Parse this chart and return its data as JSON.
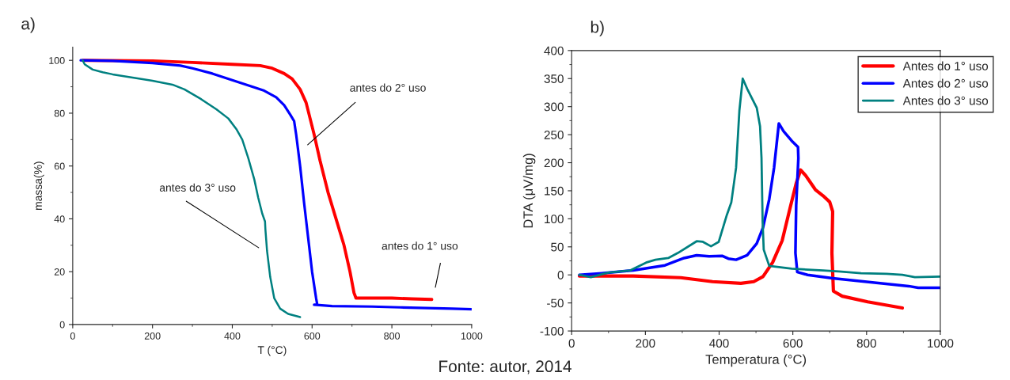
{
  "chart_data": [
    {
      "type": "line",
      "title": "a)",
      "xlabel": "T (°C)",
      "ylabel": "massa(%)",
      "xlim": [
        0,
        1000
      ],
      "ylim": [
        0,
        105
      ],
      "xticks": [
        0,
        200,
        400,
        600,
        800,
        1000
      ],
      "yticks": [
        0,
        20,
        40,
        60,
        80,
        100
      ],
      "grid": false,
      "legend": false,
      "marker": "none",
      "line_style": "solid",
      "annotations": [
        "antes do 2° uso",
        "antes do 3° uso",
        "antes do 1° uso",
        "Fonte: autor, 2014"
      ],
      "series": [
        {
          "color": "#ff0000",
          "x": [
            25,
            200,
            300,
            400,
            470,
            500,
            530,
            550,
            570,
            585,
            595,
            605,
            620,
            640,
            660,
            680,
            695,
            705,
            710,
            800,
            850,
            900
          ],
          "values": [
            100,
            99.8,
            99.2,
            98.5,
            98,
            97,
            95,
            93,
            89,
            84,
            78,
            72,
            62,
            50,
            40,
            30,
            20,
            12,
            10,
            10,
            9.7,
            9.5
          ]
        },
        {
          "color": "#0000ff",
          "x": [
            20,
            100,
            200,
            270,
            300,
            350,
            400,
            450,
            480,
            510,
            530,
            545,
            555,
            560,
            570,
            580,
            590,
            600,
            610,
            613,
            605,
            650,
            750,
            820,
            950,
            1000
          ],
          "values": [
            100,
            99.8,
            99,
            98,
            97,
            95,
            92.5,
            90,
            88.5,
            86,
            83,
            79.5,
            77,
            72,
            60,
            46,
            33,
            20,
            10,
            7.5,
            7.5,
            7,
            6.8,
            6.5,
            6,
            5.8
          ]
        },
        {
          "color": "#008080",
          "x": [
            25,
            30,
            50,
            75,
            100,
            150,
            200,
            250,
            280,
            320,
            360,
            390,
            410,
            425,
            440,
            455,
            465,
            475,
            482,
            483,
            487,
            495,
            505,
            520,
            540,
            570
          ],
          "values": [
            100,
            98.5,
            96.5,
            95.5,
            94.7,
            93.5,
            92.3,
            90.8,
            89,
            85.5,
            81.5,
            78,
            74,
            70,
            63,
            55,
            48,
            42,
            39,
            36,
            28,
            18,
            10,
            6,
            4,
            2.8
          ]
        }
      ]
    },
    {
      "type": "line",
      "title": "b)",
      "xlabel": "Temperatura (°C)",
      "ylabel": "DTA (μV/mg)",
      "xlim": [
        0,
        1000
      ],
      "ylim": [
        -100,
        400
      ],
      "xticks": [
        0,
        200,
        400,
        600,
        800,
        1000
      ],
      "yticks": [
        -100,
        -50,
        0,
        50,
        100,
        150,
        200,
        250,
        300,
        350,
        400
      ],
      "grid": false,
      "legend": "top right",
      "marker": "none",
      "line_style": "solid",
      "series": [
        {
          "name": "Antes do 1° uso",
          "color": "#ff0000",
          "x": [
            21,
            167,
            296,
            382,
            459,
            494,
            519,
            545,
            571,
            592,
            609,
            621,
            635,
            661,
            682,
            700,
            708,
            706,
            710,
            734,
            803,
            897
          ],
          "values": [
            -2,
            -2,
            -5,
            -12,
            -15,
            -12,
            -3,
            22,
            61,
            118,
            163,
            187,
            177,
            152,
            141,
            130,
            113,
            39,
            -29,
            -38,
            -48,
            -59
          ]
        },
        {
          "name": "Antes do 2° uso",
          "color": "#0000ff",
          "x": [
            21,
            82,
            167,
            253,
            305,
            339,
            373,
            408,
            425,
            446,
            476,
            502,
            519,
            536,
            549,
            562,
            575,
            597,
            614,
            615,
            609,
            607,
            612,
            640,
            708,
            811,
            914,
            940,
            1000
          ],
          "values": [
            0,
            3,
            8,
            17,
            30,
            35,
            33,
            34,
            29,
            27,
            35,
            56,
            84,
            135,
            191,
            270,
            256,
            239,
            228,
            208,
            124,
            39,
            5,
            0,
            -6,
            -13,
            -20,
            -23,
            -23
          ]
        },
        {
          "name": "Antes do 3° uso",
          "color": "#008080",
          "x": [
            21,
            52,
            99,
            159,
            202,
            227,
            262,
            288,
            339,
            356,
            378,
            399,
            421,
            433,
            446,
            455,
            464,
            476,
            502,
            511,
            515,
            518,
            521,
            536,
            597,
            682,
            725,
            785,
            854,
            897,
            931,
            1000
          ],
          "values": [
            0,
            -4,
            4,
            8,
            22,
            27,
            30,
            39,
            60,
            59,
            51,
            59,
            107,
            129,
            191,
            293,
            350,
            332,
            298,
            265,
            208,
            95,
            45,
            16,
            11,
            8,
            6,
            3,
            2,
            0,
            -4,
            -3
          ]
        }
      ]
    }
  ]
}
